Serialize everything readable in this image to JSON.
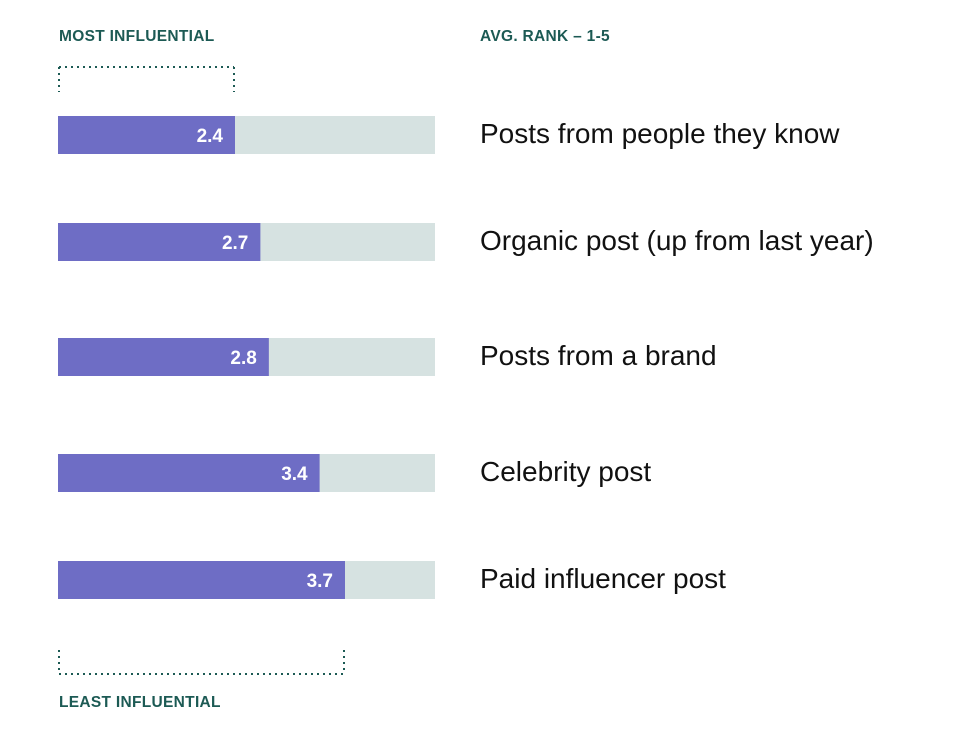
{
  "header": {
    "left_label": "MOST INFLUENTIAL",
    "right_label": "AVG. RANK – 1-5"
  },
  "footer": {
    "label": "LEAST INFLUENTIAL"
  },
  "colors": {
    "bar": "#6e6dc5",
    "track": "#d6e2e1",
    "bracket": "#1c5a54",
    "heading": "#1c5a54",
    "label": "#111111"
  },
  "chart_data": {
    "type": "bar",
    "orientation": "horizontal",
    "categories": [
      "Posts from people they know",
      "Organic post (up from last year)",
      "Posts from a brand",
      "Celebrity post",
      "Paid influencer post"
    ],
    "values": [
      2.4,
      2.7,
      2.8,
      3.4,
      3.7
    ],
    "value_labels": [
      "2.4",
      "2.7",
      "2.8",
      "3.4",
      "3.7"
    ],
    "xlim": [
      0,
      5
    ],
    "grid": false,
    "legend": "none"
  }
}
